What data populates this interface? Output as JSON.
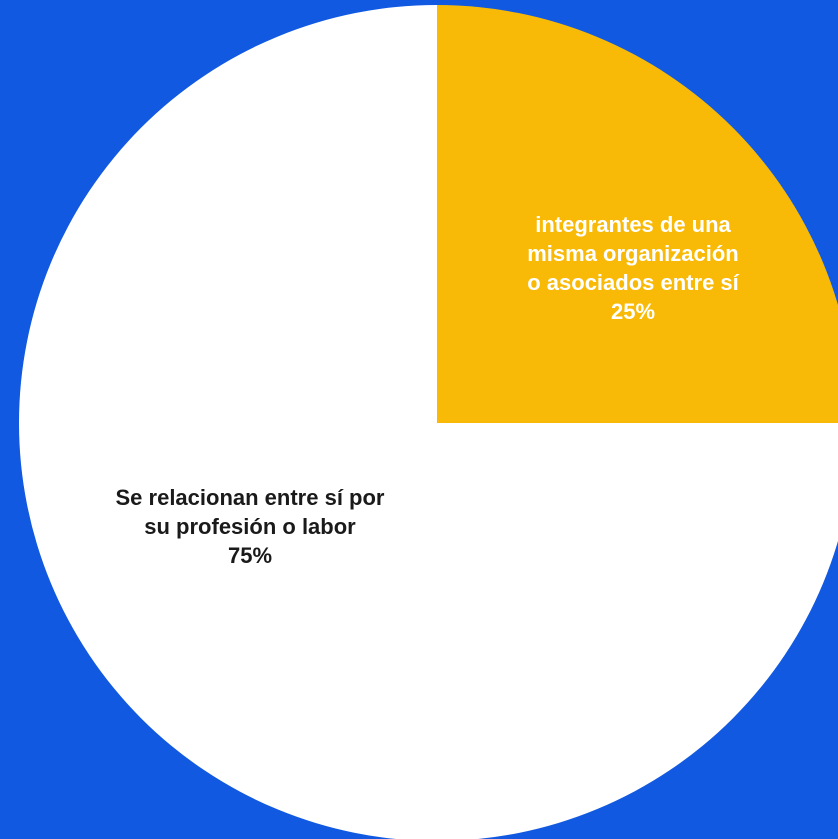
{
  "colors": {
    "background": "#1159E0",
    "slice_minor": "#F9BA07",
    "slice_major": "#FFFFFF",
    "label_on_minor": "#FFFFFF",
    "label_on_major": "#1A1A1A"
  },
  "chart_data": {
    "type": "pie",
    "title": "",
    "legend": "none",
    "start_angle": "12 o'clock",
    "direction": "clockwise",
    "slices": [
      {
        "label_lines": [
          "integrantes de una",
          "misma organización",
          "o asociados entre sí"
        ],
        "value": 25,
        "value_label": "25%",
        "color": "#F9BA07",
        "text_color": "#FFFFFF"
      },
      {
        "label_lines": [
          "Se relacionan entre sí por",
          "su profesión o labor"
        ],
        "value": 75,
        "value_label": "75%",
        "color": "#FFFFFF",
        "text_color": "#1A1A1A"
      }
    ]
  }
}
